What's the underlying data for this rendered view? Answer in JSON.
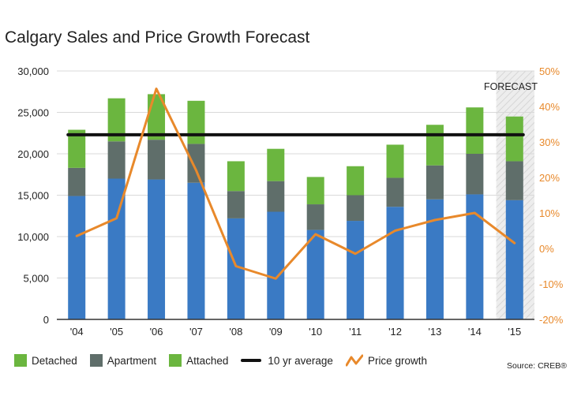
{
  "chart_data": {
    "type": "bar",
    "title": "Calgary Sales and Price Growth Forecast",
    "categories": [
      "'04",
      "'05",
      "'06",
      "'07",
      "'08",
      "'09",
      "'10",
      "'11",
      "'12",
      "'13",
      "'14",
      "'15"
    ],
    "stacked": true,
    "series": [
      {
        "name": "Detached",
        "type": "bar",
        "color": "#3a7ac4",
        "values": [
          14900,
          17000,
          16900,
          16500,
          12200,
          13000,
          10800,
          11900,
          13600,
          14500,
          15100,
          14400
        ]
      },
      {
        "name": "Apartment",
        "type": "bar",
        "color": "#5f6e6a",
        "values": [
          3400,
          4500,
          4800,
          4700,
          3300,
          3700,
          3100,
          3100,
          3500,
          4100,
          4900,
          4700
        ]
      },
      {
        "name": "Attached",
        "type": "bar",
        "color": "#6bb63f",
        "values": [
          4600,
          5200,
          5500,
          5200,
          3600,
          3900,
          3300,
          3500,
          4000,
          4900,
          5600,
          5400
        ]
      },
      {
        "name": "10 yr average",
        "type": "line",
        "color": "#111111",
        "axis": "left",
        "value": 22300
      },
      {
        "name": "Price growth",
        "type": "line",
        "color": "#e8892b",
        "axis": "right",
        "values": [
          3.5,
          8.5,
          45,
          22,
          -5,
          -8.5,
          4,
          -1.5,
          5,
          8,
          10,
          1.5
        ]
      }
    ],
    "y_left": {
      "ylim": [
        0,
        30000
      ],
      "ticks": [
        "0",
        "5,000",
        "10,000",
        "15,000",
        "20,000",
        "25,000",
        "30,000"
      ]
    },
    "y_right": {
      "ylim": [
        -20,
        50
      ],
      "ticks": [
        "-20%",
        "-10%",
        "0%",
        "10%",
        "20%",
        "30%",
        "40%",
        "50%"
      ]
    },
    "forecast_label": "FORECAST",
    "forecast_category": "'15",
    "legend_position": "bottom",
    "grid": true
  },
  "legend": {
    "detached": "Detached",
    "apartment": "Apartment",
    "attached": "Attached",
    "average": "10 yr average",
    "growth": "Price growth"
  },
  "colors": {
    "detached": "#3a7ac4",
    "apartment": "#5f6e6a",
    "attached": "#6bb63f",
    "average": "#111111",
    "growth": "#e8892b"
  },
  "source": "Source: CREB®"
}
